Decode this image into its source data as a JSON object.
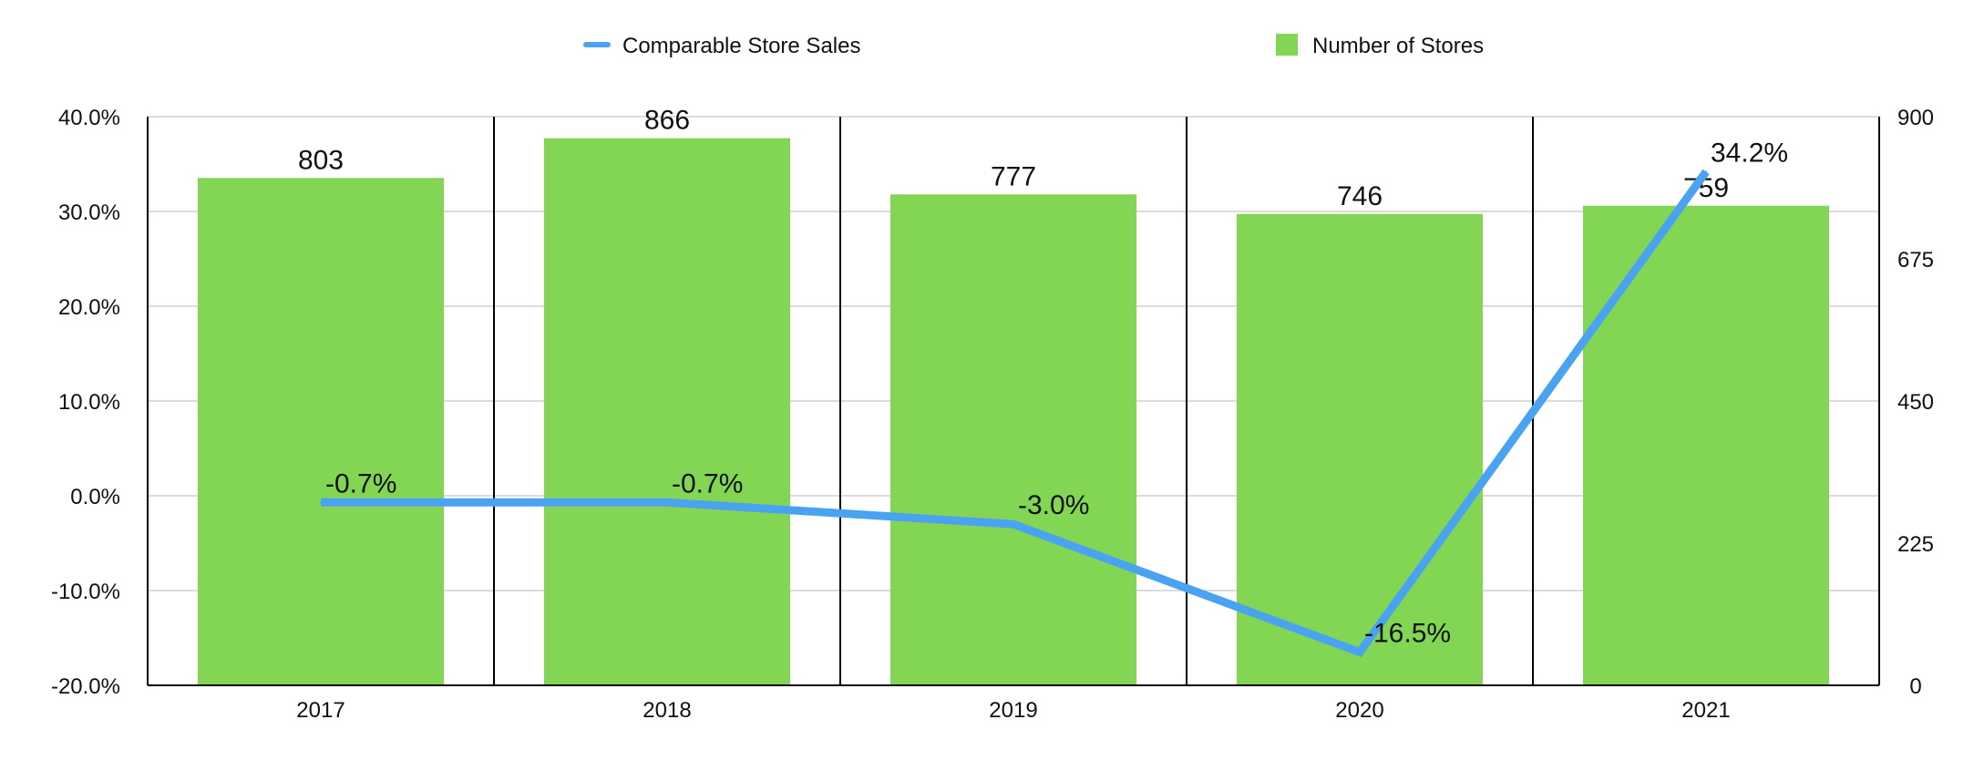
{
  "chart_data": {
    "type": "bar+line",
    "categories": [
      "2017",
      "2018",
      "2019",
      "2020",
      "2021"
    ],
    "bars": {
      "name": "Number of Stores",
      "values": [
        803,
        866,
        777,
        746,
        759
      ],
      "labels": [
        "803",
        "866",
        "777",
        "746",
        "759"
      ],
      "axis": "right",
      "color": "#82d654"
    },
    "line": {
      "name": "Comparable Store Sales",
      "values": [
        -0.7,
        -0.7,
        -3.0,
        -16.5,
        34.2
      ],
      "labels": [
        "-0.7%",
        "-0.7%",
        "-3.0%",
        "-16.5%",
        "34.2%"
      ],
      "axis": "left",
      "color": "#4aa3f0"
    },
    "left_axis": {
      "range": [
        -20,
        40
      ],
      "ticks": [
        40,
        30,
        20,
        10,
        0,
        -10,
        -20
      ],
      "tick_labels": [
        "40.0%",
        "30.0%",
        "20.0%",
        "10.0%",
        "0.0%",
        "-10.0%",
        "-20.0%"
      ]
    },
    "right_axis": {
      "range": [
        0,
        900
      ],
      "ticks": [
        900,
        675,
        450,
        225,
        0
      ],
      "tick_labels": [
        "900",
        "675",
        "450",
        "225",
        "0"
      ]
    },
    "legend": [
      {
        "label": "Comparable Store Sales",
        "type": "line",
        "color": "#4aa3f0"
      },
      {
        "label": "Number of Stores",
        "type": "square",
        "color": "#82d654"
      }
    ],
    "legend_position": "top-center",
    "grid": true
  }
}
